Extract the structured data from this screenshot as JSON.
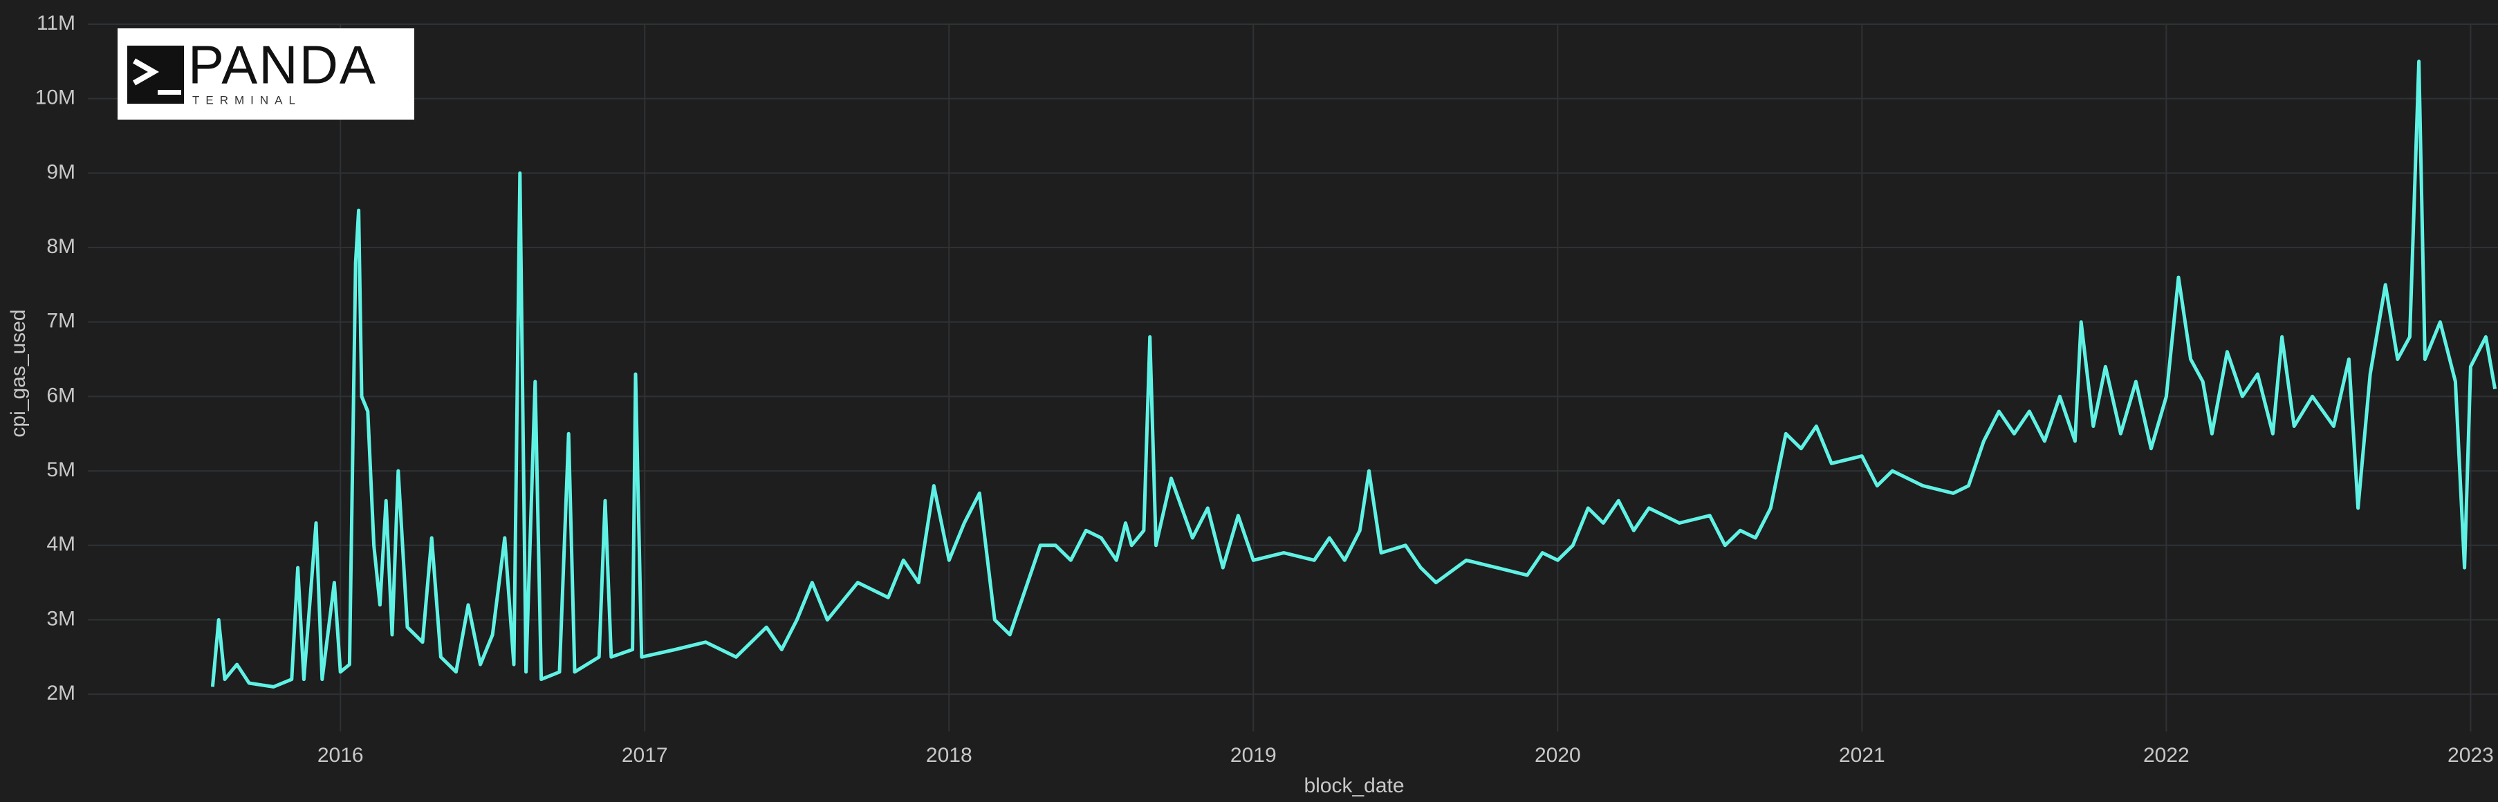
{
  "chart_data": {
    "type": "line",
    "x_label": "block_date",
    "y_label": "cpi_gas_used",
    "logo": {
      "title": "PANDA",
      "subtitle": "TERMINAL"
    },
    "color": "#5ff2e4",
    "grid": true,
    "xlim": [
      2015.17,
      2023.09
    ],
    "xticks": [
      2016,
      2017,
      2018,
      2019,
      2020,
      2021,
      2022,
      2023
    ],
    "ylim": [
      1500000,
      11000000
    ],
    "yticks": [
      {
        "value": 2000000,
        "label": "2M"
      },
      {
        "value": 3000000,
        "label": "3M"
      },
      {
        "value": 4000000,
        "label": "4M"
      },
      {
        "value": 5000000,
        "label": "5M"
      },
      {
        "value": 6000000,
        "label": "6M"
      },
      {
        "value": 7000000,
        "label": "7M"
      },
      {
        "value": 8000000,
        "label": "8M"
      },
      {
        "value": 9000000,
        "label": "9M"
      },
      {
        "value": 10000000,
        "label": "10M"
      },
      {
        "value": 11000000,
        "label": "11M"
      }
    ],
    "x": [
      2015.58,
      2015.6,
      2015.62,
      2015.66,
      2015.7,
      2015.78,
      2015.84,
      2015.86,
      2015.88,
      2015.92,
      2015.94,
      2015.98,
      2016.0,
      2016.03,
      2016.05,
      2016.06,
      2016.07,
      2016.09,
      2016.11,
      2016.13,
      2016.15,
      2016.17,
      2016.19,
      2016.22,
      2016.27,
      2016.3,
      2016.33,
      2016.38,
      2016.42,
      2016.46,
      2016.5,
      2016.54,
      2016.57,
      2016.59,
      2016.61,
      2016.64,
      2016.66,
      2016.72,
      2016.75,
      2016.77,
      2016.85,
      2016.87,
      2016.89,
      2016.96,
      2016.97,
      2016.99,
      2017.1,
      2017.2,
      2017.3,
      2017.4,
      2017.45,
      2017.5,
      2017.55,
      2017.6,
      2017.7,
      2017.8,
      2017.85,
      2017.9,
      2017.95,
      2018.0,
      2018.05,
      2018.1,
      2018.15,
      2018.2,
      2018.25,
      2018.3,
      2018.35,
      2018.4,
      2018.45,
      2018.5,
      2018.55,
      2018.58,
      2018.6,
      2018.64,
      2018.66,
      2018.68,
      2018.73,
      2018.8,
      2018.85,
      2018.9,
      2018.95,
      2019.0,
      2019.1,
      2019.2,
      2019.25,
      2019.3,
      2019.35,
      2019.38,
      2019.42,
      2019.5,
      2019.55,
      2019.6,
      2019.7,
      2019.8,
      2019.9,
      2019.95,
      2020.0,
      2020.05,
      2020.1,
      2020.15,
      2020.2,
      2020.25,
      2020.3,
      2020.4,
      2020.5,
      2020.55,
      2020.6,
      2020.65,
      2020.7,
      2020.75,
      2020.8,
      2020.85,
      2020.9,
      2021.0,
      2021.05,
      2021.1,
      2021.2,
      2021.3,
      2021.35,
      2021.4,
      2021.45,
      2021.5,
      2021.55,
      2021.6,
      2021.65,
      2021.7,
      2021.72,
      2021.76,
      2021.8,
      2021.85,
      2021.9,
      2021.95,
      2022.0,
      2022.04,
      2022.08,
      2022.12,
      2022.15,
      2022.2,
      2022.25,
      2022.3,
      2022.35,
      2022.38,
      2022.42,
      2022.48,
      2022.55,
      2022.6,
      2022.63,
      2022.67,
      2022.72,
      2022.76,
      2022.8,
      2022.83,
      2022.85,
      2022.9,
      2022.95,
      2022.98,
      2023.0,
      2023.05,
      2023.08
    ],
    "values": [
      2100000,
      3000000,
      2200000,
      2400000,
      2150000,
      2100000,
      2200000,
      3700000,
      2200000,
      4300000,
      2200000,
      3500000,
      2300000,
      2400000,
      7800000,
      8500000,
      6000000,
      5800000,
      4000000,
      3200000,
      4600000,
      2800000,
      5000000,
      2900000,
      2700000,
      4100000,
      2500000,
      2300000,
      3200000,
      2400000,
      2800000,
      4100000,
      2400000,
      9000000,
      2300000,
      6200000,
      2200000,
      2300000,
      5500000,
      2300000,
      2500000,
      4600000,
      2500000,
      2600000,
      6300000,
      2500000,
      2600000,
      2700000,
      2500000,
      2900000,
      2600000,
      3000000,
      3500000,
      3000000,
      3500000,
      3300000,
      3800000,
      3500000,
      4800000,
      3800000,
      4300000,
      4700000,
      3000000,
      2800000,
      3400000,
      4000000,
      4000000,
      3800000,
      4200000,
      4100000,
      3800000,
      4300000,
      4000000,
      4200000,
      6800000,
      4000000,
      4900000,
      4100000,
      4500000,
      3700000,
      4400000,
      3800000,
      3900000,
      3800000,
      4100000,
      3800000,
      4200000,
      5000000,
      3900000,
      4000000,
      3700000,
      3500000,
      3800000,
      3700000,
      3600000,
      3900000,
      3800000,
      4000000,
      4500000,
      4300000,
      4600000,
      4200000,
      4500000,
      4300000,
      4400000,
      4000000,
      4200000,
      4100000,
      4500000,
      5500000,
      5300000,
      5600000,
      5100000,
      5200000,
      4800000,
      5000000,
      4800000,
      4700000,
      4800000,
      5400000,
      5800000,
      5500000,
      5800000,
      5400000,
      6000000,
      5400000,
      7000000,
      5600000,
      6400000,
      5500000,
      6200000,
      5300000,
      6000000,
      7600000,
      6500000,
      6200000,
      5500000,
      6600000,
      6000000,
      6300000,
      5500000,
      6800000,
      5600000,
      6000000,
      5600000,
      6500000,
      4500000,
      6300000,
      7500000,
      6500000,
      6800000,
      10500000,
      6500000,
      7000000,
      6200000,
      3700000,
      6400000,
      6800000,
      6100000
    ]
  }
}
